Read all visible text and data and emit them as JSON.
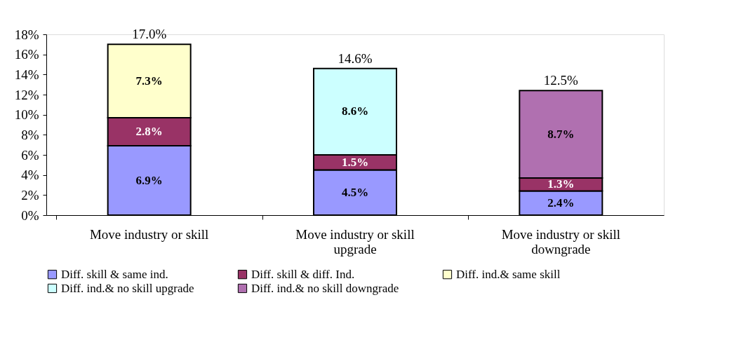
{
  "chart_data": {
    "type": "bar",
    "stacked": true,
    "categories": [
      "Move industry or skill",
      "Move industry or skill upgrade",
      "Move industry or skill downgrade"
    ],
    "series": [
      {
        "name": "Diff. skill & same ind.",
        "color": "#9999ff",
        "values": [
          6.9,
          4.5,
          2.4
        ],
        "value_labels": [
          "6.9%",
          "4.5%",
          "2.4%"
        ]
      },
      {
        "name": "Diff. skill & diff. Ind.",
        "color": "#993366",
        "values": [
          2.8,
          1.5,
          1.3
        ],
        "value_labels": [
          "2.8%",
          "1.5%",
          "1.3%"
        ]
      },
      {
        "name": "Diff. ind.& same skill",
        "color": "#ffffcc",
        "values": [
          7.3,
          null,
          null
        ],
        "value_labels": [
          "7.3%",
          null,
          null
        ]
      },
      {
        "name": "Diff. ind.& no skill upgrade",
        "color": "#ccffff",
        "values": [
          null,
          8.6,
          null
        ],
        "value_labels": [
          null,
          "8.6%",
          null
        ]
      },
      {
        "name": "Diff. ind.& no skill downgrade",
        "color": "#b070b0",
        "values": [
          null,
          null,
          8.7
        ],
        "value_labels": [
          null,
          null,
          "8.7%"
        ]
      }
    ],
    "totals": [
      "17.0%",
      "14.6%",
      "12.5%"
    ],
    "ylim": [
      0,
      18
    ],
    "yticks": [
      {
        "value": 0,
        "label": "0%"
      },
      {
        "value": 2,
        "label": "2%"
      },
      {
        "value": 4,
        "label": "4%"
      },
      {
        "value": 6,
        "label": "6%"
      },
      {
        "value": 8,
        "label": "8%"
      },
      {
        "value": 10,
        "label": "10%"
      },
      {
        "value": 12,
        "label": "12%"
      },
      {
        "value": 14,
        "label": "14%"
      },
      {
        "value": 16,
        "label": "16%"
      },
      {
        "value": 18,
        "label": "18%"
      }
    ],
    "grid": false,
    "legend": "bottom"
  }
}
